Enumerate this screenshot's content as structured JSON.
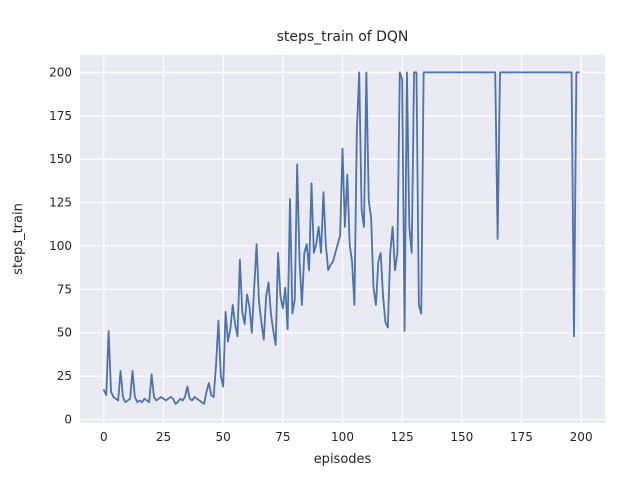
{
  "figure": {
    "title": "steps_train of DQN",
    "xlabel": "episodes",
    "ylabel": "steps_train"
  },
  "chart_data": {
    "type": "line",
    "title": "steps_train of DQN",
    "xlabel": "episodes",
    "ylabel": "steps_train",
    "style": "seaborn-darkgrid",
    "grid": true,
    "legend": "none",
    "line_color": "#4c72b0",
    "plot_bg_color": "#eaeaf2",
    "grid_color": "#ffffff",
    "text_color": "#262626",
    "xlim": [
      -10,
      210
    ],
    "ylim": [
      -2,
      210
    ],
    "xticks": [
      0,
      25,
      50,
      75,
      100,
      125,
      150,
      175,
      200
    ],
    "yticks": [
      0,
      25,
      50,
      75,
      100,
      125,
      150,
      175,
      200
    ],
    "x_is_episode_index_starting_at": 0,
    "series": [
      {
        "name": "steps_train",
        "values": [
          17,
          14,
          51,
          16,
          13,
          12,
          11,
          28,
          13,
          10,
          11,
          12,
          28,
          13,
          10,
          11,
          10,
          12,
          11,
          10,
          26,
          13,
          11,
          12,
          13,
          12,
          11,
          12,
          13,
          12,
          9,
          10,
          12,
          11,
          13,
          19,
          12,
          11,
          13,
          12,
          11,
          10,
          9,
          16,
          21,
          14,
          13,
          31,
          57,
          25,
          19,
          62,
          45,
          52,
          66,
          55,
          48,
          92,
          62,
          55,
          72,
          65,
          50,
          76,
          101,
          68,
          56,
          46,
          71,
          79,
          61,
          51,
          43,
          96,
          71,
          64,
          76,
          52,
          127,
          61,
          69,
          147,
          91,
          66,
          96,
          101,
          86,
          136,
          96,
          101,
          111,
          96,
          131,
          101,
          86,
          89,
          91,
          96,
          101,
          106,
          156,
          111,
          141,
          101,
          91,
          66,
          166,
          200,
          121,
          111,
          200,
          126,
          116,
          76,
          66,
          91,
          96,
          71,
          56,
          53,
          96,
          111,
          86,
          96,
          200,
          196,
          51,
          200,
          111,
          96,
          200,
          200,
          66,
          61,
          200,
          200,
          200,
          200,
          200,
          200,
          200,
          200,
          200,
          200,
          200,
          200,
          200,
          200,
          200,
          200,
          200,
          200,
          200,
          200,
          200,
          200,
          200,
          200,
          200,
          200,
          200,
          200,
          200,
          200,
          200,
          104,
          200,
          200,
          200,
          200,
          200,
          200,
          200,
          200,
          200,
          200,
          200,
          200,
          200,
          200,
          200,
          200,
          200,
          200,
          200,
          200,
          200,
          200,
          200,
          200,
          200,
          200,
          200,
          200,
          200,
          200,
          200,
          48,
          200,
          200
        ]
      }
    ]
  }
}
